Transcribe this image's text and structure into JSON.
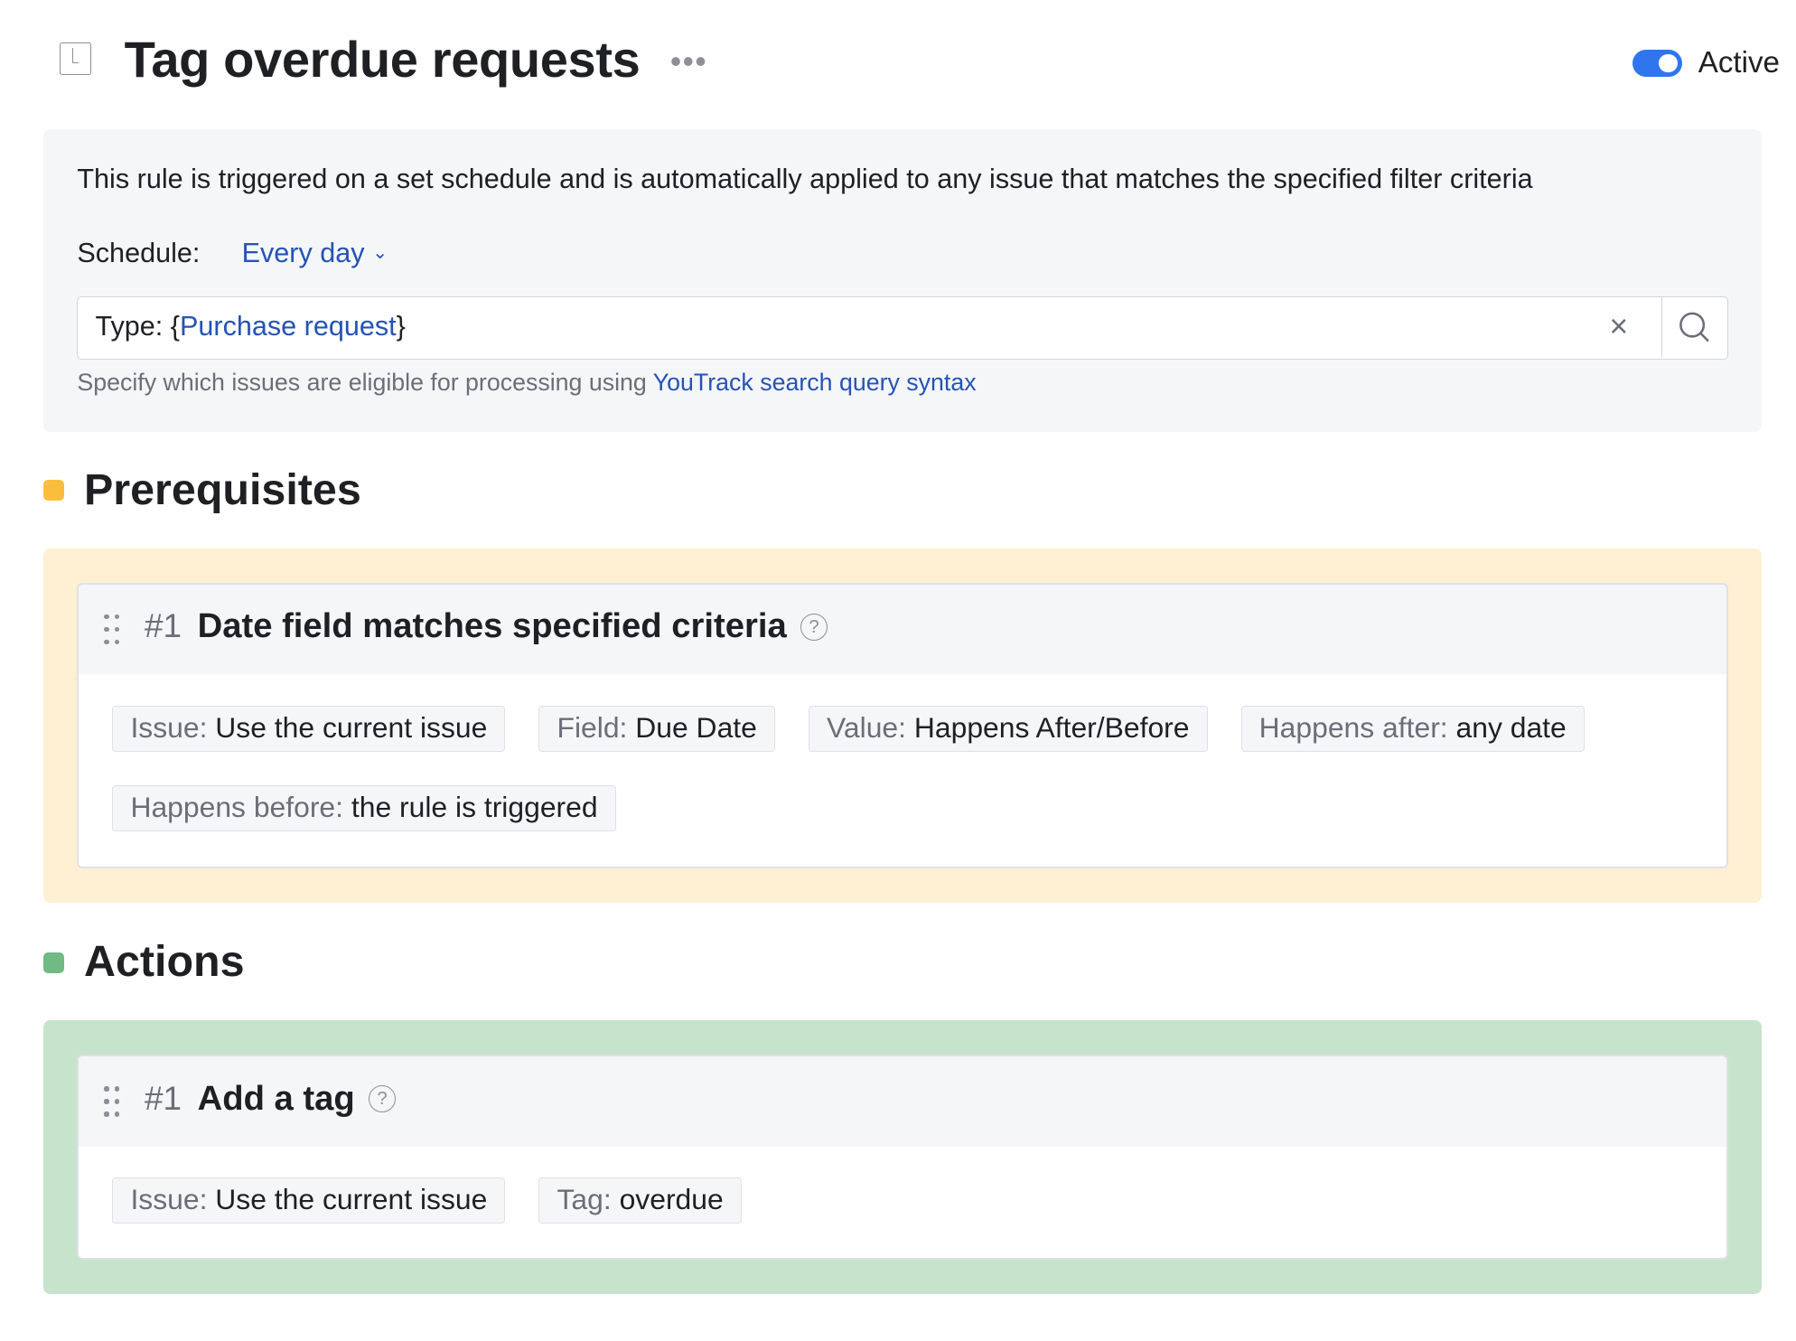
{
  "header": {
    "title": "Tag overdue requests",
    "more_icon": "ellipsis-icon",
    "active_label": "Active",
    "active": true,
    "toggle_color": "#2f76ee"
  },
  "schedule": {
    "description": "This rule is triggered on a set schedule and is automatically applied to any issue that matches the specified filter criteria",
    "label": "Schedule:",
    "value": "Every day",
    "query_prefix": "Type: {",
    "query_value": "Purchase request",
    "query_suffix": "}",
    "help_text": "Specify which issues are eligible for processing using ",
    "help_link": "YouTrack search query syntax"
  },
  "prerequisites": {
    "title": "Prerequisites",
    "color": "#fbbd3d",
    "panel_color": "#fff0d4",
    "items": [
      {
        "num": "#1",
        "title": "Date field matches specified criteria",
        "chips": [
          {
            "k": "Issue:",
            "v": "Use the current issue"
          },
          {
            "k": "Field:",
            "v": "Due Date"
          },
          {
            "k": "Value:",
            "v": "Happens After/Before"
          },
          {
            "k": "Happens after:",
            "v": "any date"
          },
          {
            "k": "Happens before:",
            "v": "the rule is triggered"
          }
        ]
      }
    ]
  },
  "actions": {
    "title": "Actions",
    "color": "#6fbb83",
    "panel_color": "#c6e4cc",
    "items": [
      {
        "num": "#1",
        "title": "Add a tag",
        "chips": [
          {
            "k": "Issue:",
            "v": "Use the current issue"
          },
          {
            "k": "Tag:",
            "v": "overdue"
          }
        ]
      }
    ]
  }
}
